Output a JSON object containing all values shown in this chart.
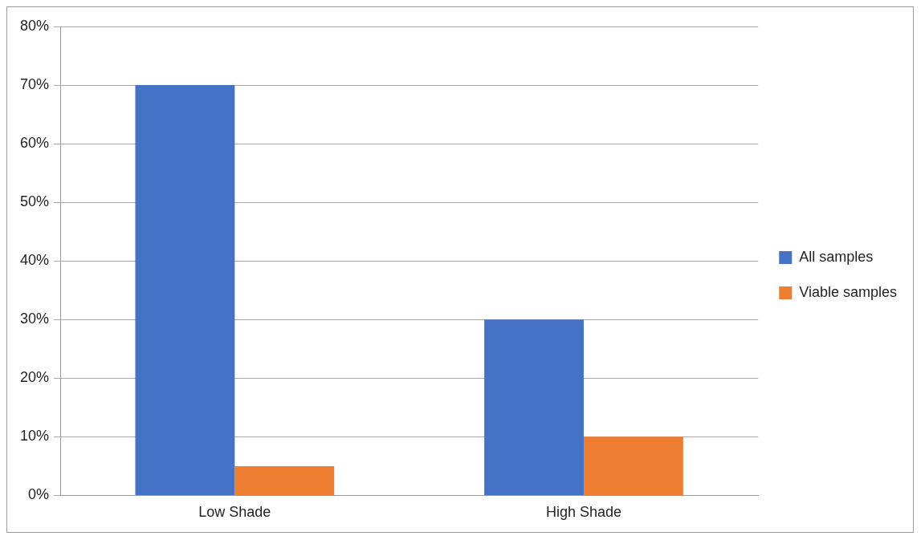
{
  "chart_data": {
    "type": "bar",
    "categories": [
      "Low Shade",
      "High Shade"
    ],
    "series": [
      {
        "name": "All samples",
        "color": "#4472c4",
        "values": [
          70,
          30
        ]
      },
      {
        "name": "Viable samples",
        "color": "#ed7d31",
        "values": [
          5,
          10
        ]
      }
    ],
    "ylim": [
      0,
      80
    ],
    "yticks": [
      {
        "value": 0,
        "label": "0%"
      },
      {
        "value": 10,
        "label": "10%"
      },
      {
        "value": 20,
        "label": "20%"
      },
      {
        "value": 30,
        "label": "30%"
      },
      {
        "value": 40,
        "label": "40%"
      },
      {
        "value": 50,
        "label": "50%"
      },
      {
        "value": 60,
        "label": "60%"
      },
      {
        "value": 70,
        "label": "70%"
      },
      {
        "value": 80,
        "label": "80%"
      }
    ],
    "grid": "y",
    "legend": "right"
  }
}
